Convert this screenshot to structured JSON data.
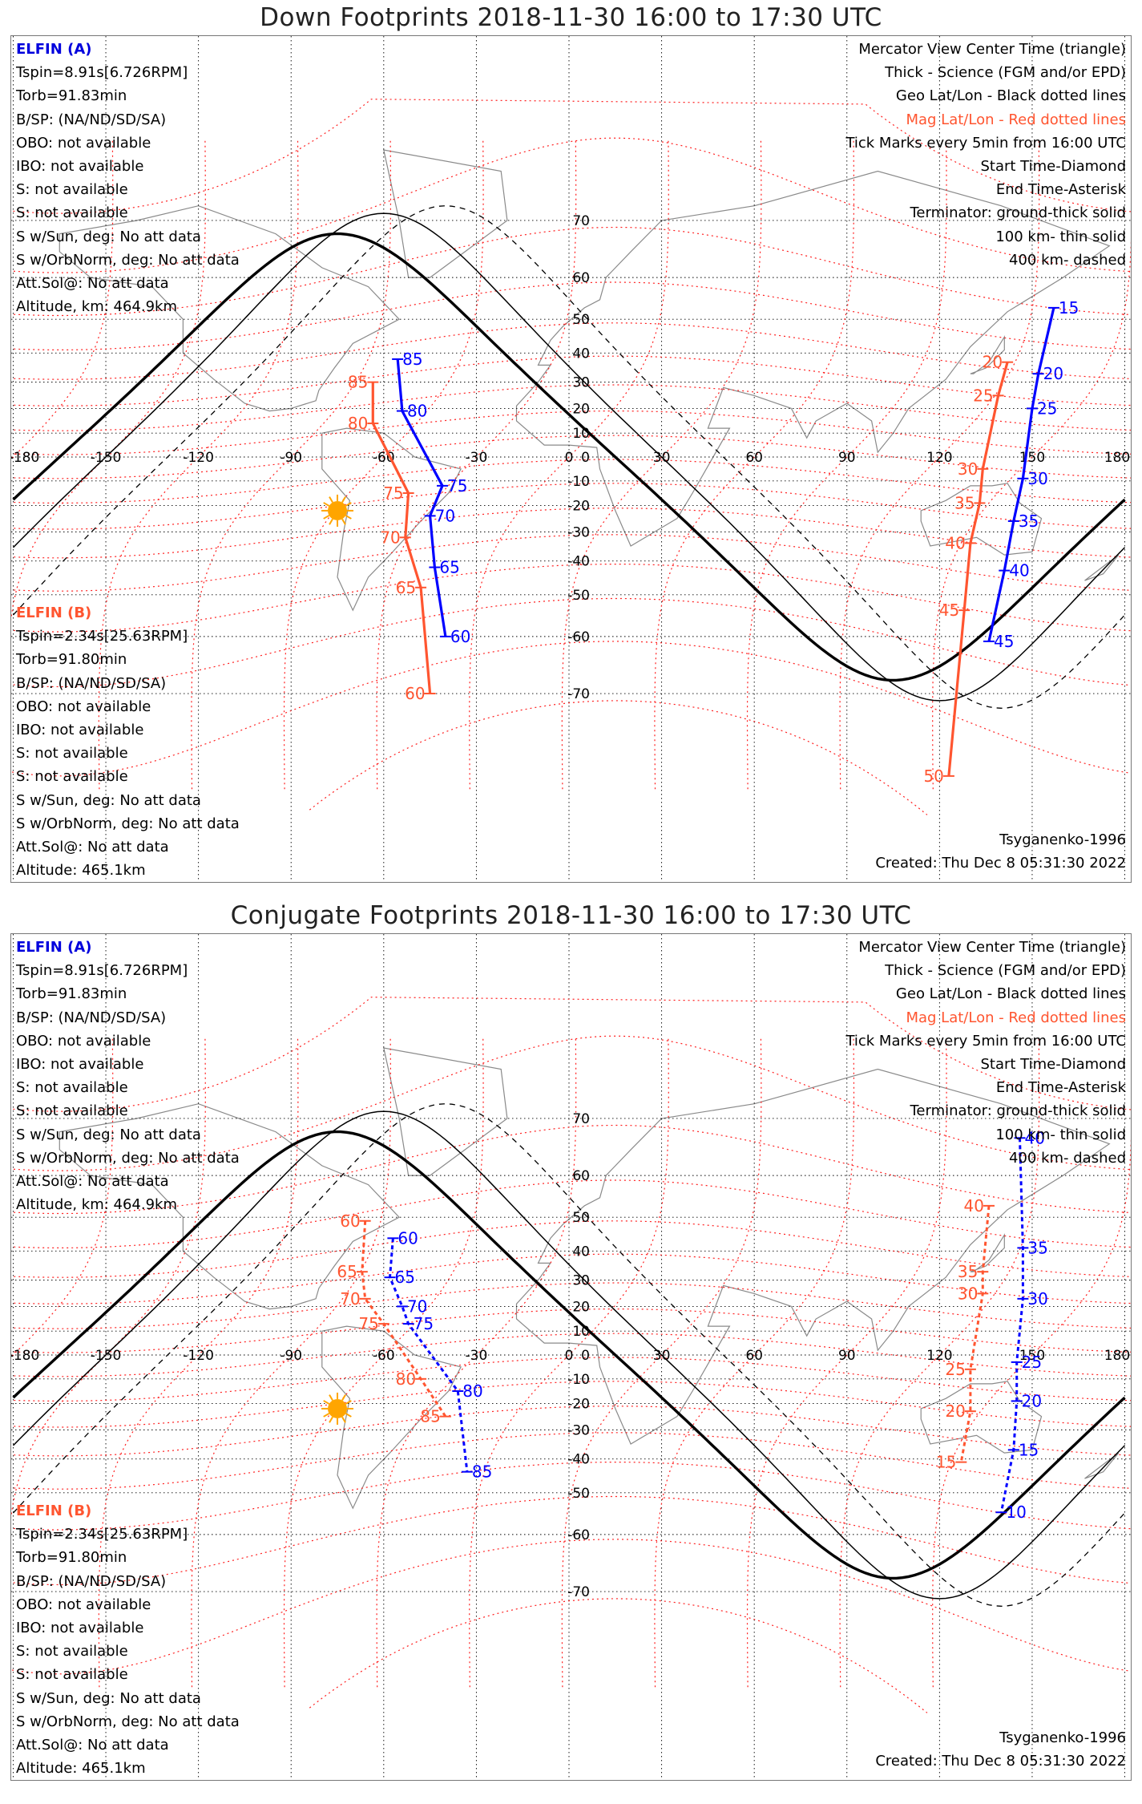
{
  "colors": {
    "geo_grid": "#000000",
    "mag_grid": "#ff2020",
    "elfin_a": "#0000ff",
    "elfin_b": "#ff5530",
    "sun": "#ffa500",
    "coast": "#8a8a8a"
  },
  "panels": [
    {
      "title": "Down Footprints 2018-11-30 16:00 to 17:30 UTC",
      "left_a": {
        "header": "ELFIN (A)",
        "lines": [
          "Tspin=8.91s[6.726RPM]",
          "Torb=91.83min",
          "B/SP: (NA/ND/SD/SA)",
          "OBO: not available",
          "IBO: not available",
          "S: not available",
          "S: not available",
          "S w/Sun, deg: No att data",
          "S w/OrbNorm, deg: No att data",
          "Att.Sol@: No att data",
          "Altitude, km: 464.9km"
        ]
      },
      "left_b": {
        "header": "ELFIN (B)",
        "lines": [
          "Tspin=2.34s[25.63RPM]",
          "Torb=91.80min",
          "B/SP: (NA/ND/SD/SA)",
          "OBO: not available",
          "IBO: not available",
          "S: not available",
          "S: not available",
          "S w/Sun, deg: No att data",
          "S w/OrbNorm, deg: No att data",
          "Att.Sol@: No att data",
          "Altitude: 465.1km"
        ]
      },
      "right": {
        "l1": "Mercator View Center Time (triangle)",
        "l2": "Thick - Science (FGM and/or EPD)",
        "l3": "Geo Lat/Lon - Black dotted lines",
        "l4": "Mag Lat/Lon - Red dotted lines",
        "l5": "Tick Marks every 5min from 16:00 UTC",
        "l6": "Start Time-Diamond",
        "l7": "End Time-Asterisk",
        "l8": "Terminator: ground-thick solid",
        "l9": "100 km- thin solid",
        "l10": "400 km- dashed"
      },
      "model": "Tsyganenko-1996",
      "created": "Created: Thu Dec  8 05:31:30 2022",
      "lon_labels": [
        "-180",
        "-150",
        "-120",
        "-90",
        "-60",
        "-30",
        "0",
        "30",
        "60",
        "90",
        "120",
        "150",
        "180"
      ],
      "lat_labels": [
        "70",
        "60",
        "50",
        "40",
        "30",
        "20",
        "10",
        "0",
        "-10",
        "-20",
        "-30",
        "-40",
        "-50",
        "-60",
        "-70"
      ],
      "sun": {
        "lon": -75,
        "lat": -22
      },
      "track_a_west": [
        {
          "label": "85",
          "lon": -55.5,
          "lat": 38
        },
        {
          "label": "80",
          "lon": -54,
          "lat": 19
        },
        {
          "label": "75",
          "lon": -41,
          "lat": -12
        },
        {
          "label": "70",
          "lon": -45,
          "lat": -24
        },
        {
          "label": "65",
          "lon": -43.5,
          "lat": -42
        },
        {
          "label": "60",
          "lon": -40,
          "lat": -60
        }
      ],
      "track_b_west": [
        {
          "label": "85",
          "lon": -63.5,
          "lat": 30
        },
        {
          "label": "80",
          "lon": -63.5,
          "lat": 14
        },
        {
          "label": "75",
          "lon": -52,
          "lat": -15
        },
        {
          "label": "70",
          "lon": -53,
          "lat": -32
        },
        {
          "label": "65",
          "lon": -48,
          "lat": -48
        },
        {
          "label": "60",
          "lon": -45,
          "lat": -70
        }
      ],
      "track_a_east": [
        {
          "label": "15",
          "lon": 157,
          "lat": 53
        },
        {
          "label": "20",
          "lon": 152,
          "lat": 33
        },
        {
          "label": "25",
          "lon": 150,
          "lat": 20
        },
        {
          "label": "30",
          "lon": 147,
          "lat": -9
        },
        {
          "label": "35",
          "lon": 144,
          "lat": -26
        },
        {
          "label": "40",
          "lon": 141,
          "lat": -43
        },
        {
          "label": "45",
          "lon": 136,
          "lat": -61
        }
      ],
      "track_b_east": [
        {
          "label": "20",
          "lon": 142,
          "lat": 37
        },
        {
          "label": "25",
          "lon": 139,
          "lat": 25
        },
        {
          "label": "30",
          "lon": 134,
          "lat": -5
        },
        {
          "label": "35",
          "lon": 133,
          "lat": -19
        },
        {
          "label": "40",
          "lon": 130,
          "lat": -34
        },
        {
          "label": "45",
          "lon": 128,
          "lat": -54
        },
        {
          "label": "50",
          "lon": 123,
          "lat": -79
        }
      ]
    },
    {
      "title": "Conjugate Footprints 2018-11-30 16:00 to 17:30 UTC",
      "left_a": {
        "header": "ELFIN (A)",
        "lines": [
          "Tspin=8.91s[6.726RPM]",
          "Torb=91.83min",
          "B/SP: (NA/ND/SD/SA)",
          "OBO: not available",
          "IBO: not available",
          "S: not available",
          "S: not available",
          "S w/Sun, deg: No att data",
          "S w/OrbNorm, deg: No att data",
          "Att.Sol@: No att data",
          "Altitude, km: 464.9km"
        ]
      },
      "left_b": {
        "header": "ELFIN (B)",
        "lines": [
          "Tspin=2.34s[25.63RPM]",
          "Torb=91.80min",
          "B/SP: (NA/ND/SD/SA)",
          "OBO: not available",
          "IBO: not available",
          "S: not available",
          "S: not available",
          "S w/Sun, deg: No att data",
          "S w/OrbNorm, deg: No att data",
          "Att.Sol@: No att data",
          "Altitude: 465.1km"
        ]
      },
      "right": {
        "l1": "Mercator View Center Time (triangle)",
        "l2": "Thick - Science (FGM and/or EPD)",
        "l3": "Geo Lat/Lon - Black dotted lines",
        "l4": "Mag Lat/Lon - Red dotted lines",
        "l5": "Tick Marks every 5min from 16:00 UTC",
        "l6": "Start Time-Diamond",
        "l7": "End Time-Asterisk",
        "l8": "Terminator: ground-thick solid",
        "l9": "100 km- thin solid",
        "l10": "400 km- dashed"
      },
      "model": "Tsyganenko-1996",
      "created": "Created: Thu Dec  8 05:31:30 2022",
      "lon_labels": [
        "-180",
        "-150",
        "-120",
        "-90",
        "-60",
        "-30",
        "0",
        "30",
        "60",
        "90",
        "120",
        "150",
        "180"
      ],
      "lat_labels": [
        "70",
        "60",
        "50",
        "40",
        "30",
        "20",
        "10",
        "0",
        "-10",
        "-20",
        "-30",
        "-40",
        "-50",
        "-60",
        "-70"
      ],
      "sun": {
        "lon": -75,
        "lat": -22
      },
      "track_a_west": [
        {
          "label": "60",
          "lon": -57,
          "lat": 44
        },
        {
          "label": "65",
          "lon": -58,
          "lat": 31
        },
        {
          "label": "70",
          "lon": -54,
          "lat": 20
        },
        {
          "label": "75",
          "lon": -52,
          "lat": 13
        },
        {
          "label": "80",
          "lon": -36,
          "lat": -15
        },
        {
          "label": "85",
          "lon": -33,
          "lat": -44
        }
      ],
      "track_b_west": [
        {
          "label": "60",
          "lon": -66,
          "lat": 49
        },
        {
          "label": "65",
          "lon": -67,
          "lat": 33
        },
        {
          "label": "70",
          "lon": -66,
          "lat": 23
        },
        {
          "label": "75",
          "lon": -60,
          "lat": 13
        },
        {
          "label": "80",
          "lon": -48,
          "lat": -10
        },
        {
          "label": "85",
          "lon": -40,
          "lat": -25
        }
      ],
      "track_a_east": [
        {
          "label": "40",
          "lon": 146,
          "lat": 67
        },
        {
          "label": "35",
          "lon": 147,
          "lat": 41
        },
        {
          "label": "30",
          "lon": 147,
          "lat": 23
        },
        {
          "label": "25",
          "lon": 145,
          "lat": -3
        },
        {
          "label": "20",
          "lon": 145,
          "lat": -19
        },
        {
          "label": "15",
          "lon": 144,
          "lat": -37
        },
        {
          "label": "10",
          "lon": 140,
          "lat": -55
        }
      ],
      "track_b_east": [
        {
          "label": "40",
          "lon": 136,
          "lat": 53
        },
        {
          "label": "35",
          "lon": 134,
          "lat": 33
        },
        {
          "label": "30",
          "lon": 134,
          "lat": 25
        },
        {
          "label": "25",
          "lon": 130,
          "lat": -6
        },
        {
          "label": "20",
          "lon": 130,
          "lat": -23
        },
        {
          "label": "15",
          "lon": 127,
          "lat": -41
        }
      ]
    }
  ]
}
